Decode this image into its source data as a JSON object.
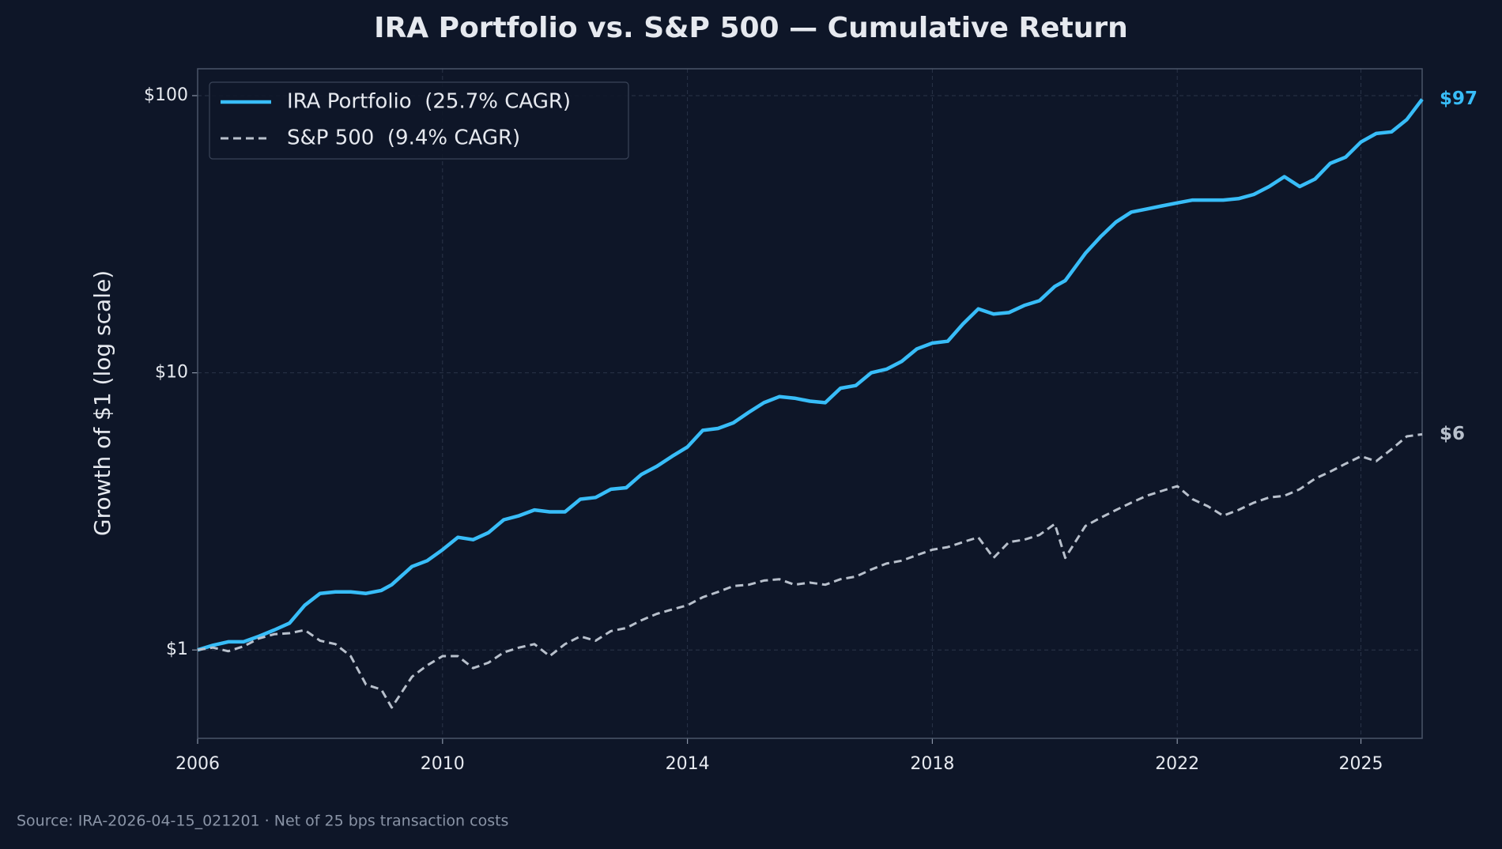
{
  "chart_data": {
    "type": "line",
    "title": "IRA Portfolio vs. S&P 500 — Cumulative Return",
    "ylabel": "Growth of $1 (log scale)",
    "source": "Source: IRA-2026-04-15_021201 · Net of 25 bps transaction costs",
    "log_y": true,
    "grid": true,
    "legend": "upper left",
    "xlim": [
      2006,
      2026
    ],
    "xticks": [
      2006,
      2010,
      2014,
      2018,
      2022,
      2025
    ],
    "ylim": [
      0.48,
      125
    ],
    "yticks": [
      {
        "value": 1,
        "label": "$1"
      },
      {
        "value": 10,
        "label": "$10"
      },
      {
        "value": 100,
        "label": "$100"
      }
    ],
    "x": [
      2006.0,
      2006.25,
      2006.5,
      2006.75,
      2007.0,
      2007.25,
      2007.5,
      2007.75,
      2008.0,
      2008.25,
      2008.5,
      2008.75,
      2009.0,
      2009.17,
      2009.5,
      2009.75,
      2010.0,
      2010.25,
      2010.5,
      2010.75,
      2011.0,
      2011.25,
      2011.5,
      2011.75,
      2012.0,
      2012.25,
      2012.5,
      2012.75,
      2013.0,
      2013.25,
      2013.5,
      2013.75,
      2014.0,
      2014.25,
      2014.5,
      2014.75,
      2015.0,
      2015.25,
      2015.5,
      2015.75,
      2016.0,
      2016.25,
      2016.5,
      2016.75,
      2017.0,
      2017.25,
      2017.5,
      2017.75,
      2018.0,
      2018.25,
      2018.5,
      2018.75,
      2019.0,
      2019.25,
      2019.5,
      2019.75,
      2020.0,
      2020.17,
      2020.5,
      2020.75,
      2021.0,
      2021.25,
      2021.5,
      2021.75,
      2022.0,
      2022.25,
      2022.5,
      2022.75,
      2023.0,
      2023.25,
      2023.5,
      2023.75,
      2024.0,
      2024.25,
      2024.5,
      2024.75,
      2025.0,
      2025.25,
      2025.5,
      2025.75,
      2026.0
    ],
    "series": [
      {
        "name": "IRA Portfolio  (25.7% CAGR)",
        "color": "#38bdf8",
        "dash": false,
        "end_label": "$97",
        "values": [
          1.0,
          1.04,
          1.07,
          1.07,
          1.12,
          1.18,
          1.25,
          1.45,
          1.6,
          1.62,
          1.62,
          1.6,
          1.64,
          1.72,
          2.0,
          2.1,
          2.3,
          2.55,
          2.5,
          2.65,
          2.95,
          3.05,
          3.2,
          3.15,
          3.15,
          3.5,
          3.55,
          3.8,
          3.85,
          4.3,
          4.6,
          5.0,
          5.4,
          6.2,
          6.3,
          6.6,
          7.2,
          7.8,
          8.2,
          8.1,
          7.9,
          7.8,
          8.8,
          9.0,
          10.0,
          10.3,
          11.0,
          12.2,
          12.8,
          13.0,
          15.0,
          17.0,
          16.3,
          16.5,
          17.5,
          18.2,
          20.5,
          21.5,
          27,
          31,
          35,
          38,
          39,
          40,
          41,
          42,
          42,
          42,
          42.5,
          44,
          47,
          51,
          47,
          50,
          57,
          60,
          68,
          73,
          74,
          82,
          97
        ]
      },
      {
        "name": "S&P 500  (9.4% CAGR)",
        "color": "#b8c0cc",
        "dash": true,
        "end_label": "$6",
        "values": [
          1.0,
          1.02,
          0.99,
          1.03,
          1.1,
          1.14,
          1.15,
          1.18,
          1.08,
          1.05,
          0.95,
          0.75,
          0.72,
          0.62,
          0.8,
          0.88,
          0.95,
          0.95,
          0.86,
          0.9,
          0.98,
          1.02,
          1.05,
          0.95,
          1.05,
          1.12,
          1.08,
          1.17,
          1.2,
          1.28,
          1.35,
          1.4,
          1.45,
          1.55,
          1.62,
          1.7,
          1.72,
          1.78,
          1.8,
          1.72,
          1.75,
          1.72,
          1.8,
          1.84,
          1.95,
          2.05,
          2.1,
          2.2,
          2.3,
          2.35,
          2.45,
          2.55,
          2.15,
          2.45,
          2.5,
          2.6,
          2.85,
          2.15,
          2.8,
          3.0,
          3.2,
          3.4,
          3.6,
          3.75,
          3.9,
          3.5,
          3.3,
          3.05,
          3.2,
          3.4,
          3.55,
          3.6,
          3.8,
          4.15,
          4.4,
          4.7,
          5.0,
          4.8,
          5.3,
          5.9,
          6.0
        ]
      }
    ]
  }
}
